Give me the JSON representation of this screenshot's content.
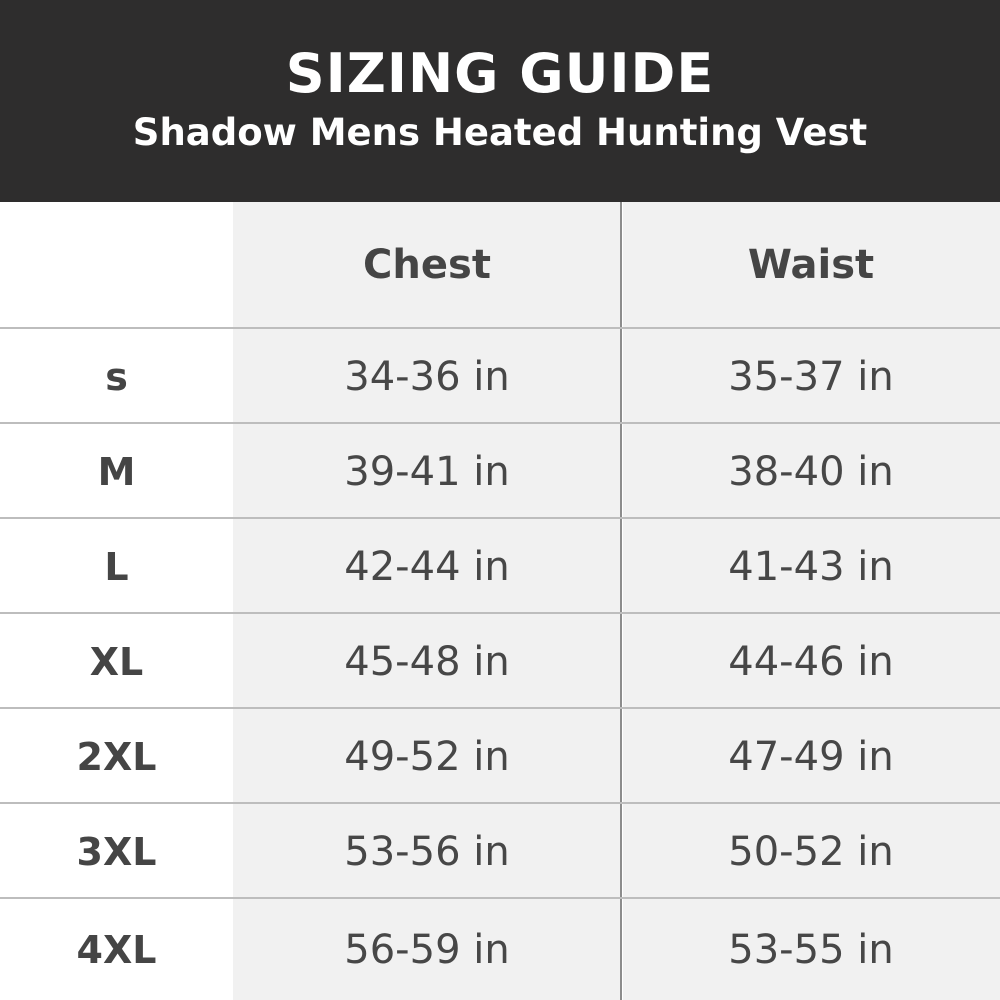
{
  "header": {
    "title": "SIZING GUIDE",
    "subtitle": "Shadow Mens Heated Hunting Vest"
  },
  "table": {
    "columns": [
      "Chest",
      "Waist"
    ],
    "rows": [
      {
        "size": "s",
        "chest": "34-36 in",
        "waist": "35-37 in"
      },
      {
        "size": "M",
        "chest": "39-41 in",
        "waist": "38-40 in"
      },
      {
        "size": "L",
        "chest": "42-44 in",
        "waist": "41-43 in"
      },
      {
        "size": "XL",
        "chest": "45-48 in",
        "waist": "44-46 in"
      },
      {
        "size": "2XL",
        "chest": "49-52 in",
        "waist": "47-49 in"
      },
      {
        "size": "3XL",
        "chest": "53-56 in",
        "waist": "50-52 in"
      },
      {
        "size": "4XL",
        "chest": "56-59 in",
        "waist": "53-55 in"
      }
    ]
  },
  "colors": {
    "header_bg": "#2e2d2d",
    "column_bg": "#f1f1f1",
    "text": "#444444"
  }
}
